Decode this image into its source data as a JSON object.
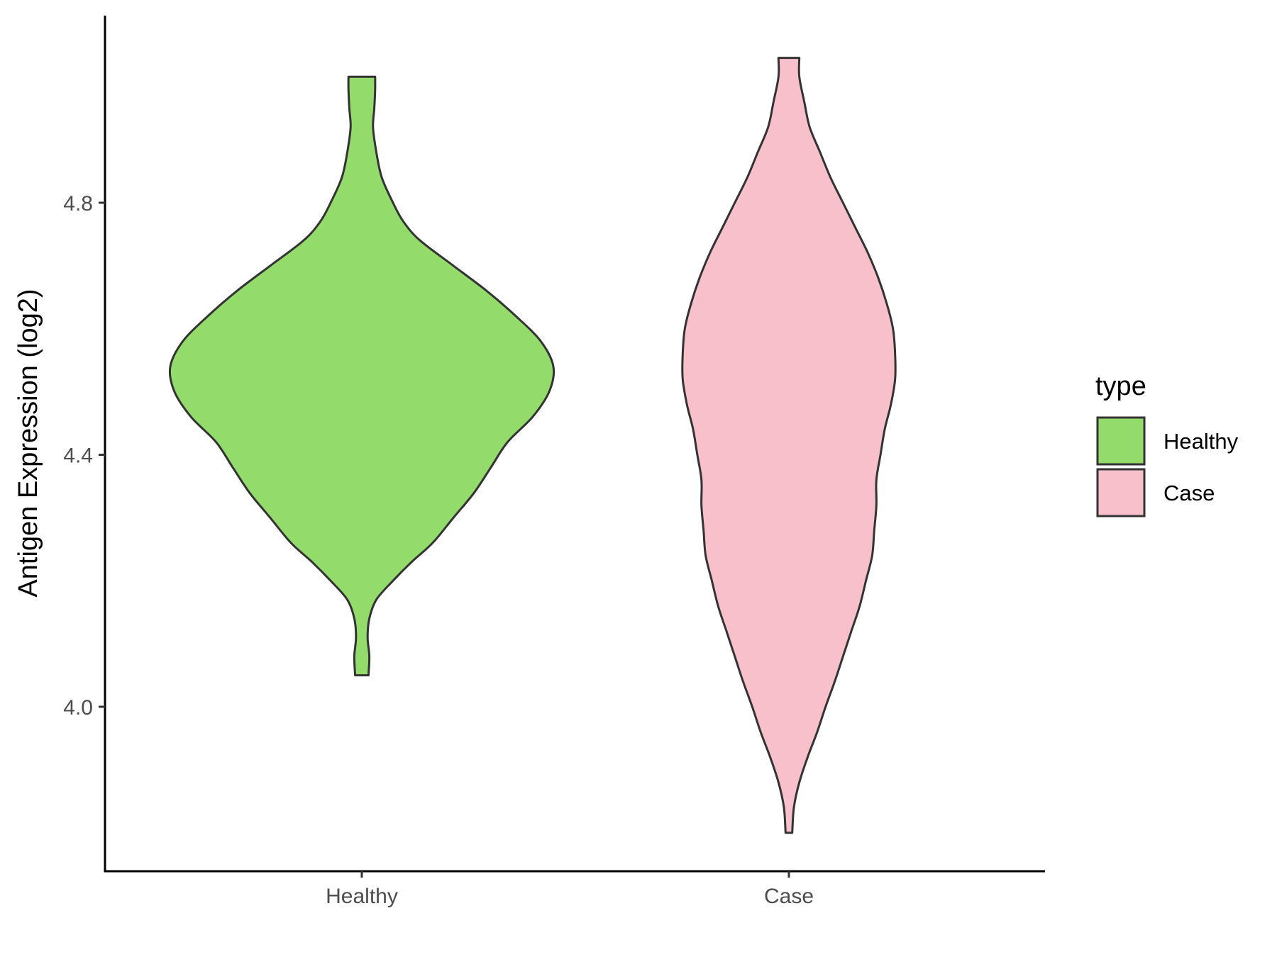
{
  "chart_data": {
    "type": "violin",
    "title": "",
    "xlabel": "",
    "ylabel": "Antigen Expression (log2)",
    "categories": [
      "Healthy",
      "Case"
    ],
    "ylim": [
      3.74,
      5.1
    ],
    "yticks": [
      {
        "value": 4.0,
        "label": "4.0"
      },
      {
        "value": 4.4,
        "label": "4.4"
      },
      {
        "value": 4.8,
        "label": "4.8"
      }
    ],
    "grid": false,
    "legend": {
      "title": "type",
      "placement": "right",
      "items": [
        {
          "label": "Healthy",
          "color": "#93DC6C"
        },
        {
          "label": "Case",
          "color": "#F7C0CB"
        }
      ]
    },
    "series": [
      {
        "name": "Healthy",
        "color": "#93DC6C",
        "min": 4.05,
        "max": 5.0,
        "profile": [
          [
            4.05,
            0.016
          ],
          [
            4.08,
            0.018
          ],
          [
            4.11,
            0.014
          ],
          [
            4.14,
            0.018
          ],
          [
            4.17,
            0.035
          ],
          [
            4.2,
            0.075
          ],
          [
            4.23,
            0.12
          ],
          [
            4.26,
            0.17
          ],
          [
            4.3,
            0.22
          ],
          [
            4.34,
            0.27
          ],
          [
            4.38,
            0.31
          ],
          [
            4.42,
            0.35
          ],
          [
            4.46,
            0.41
          ],
          [
            4.5,
            0.45
          ],
          [
            4.54,
            0.46
          ],
          [
            4.58,
            0.43
          ],
          [
            4.62,
            0.37
          ],
          [
            4.66,
            0.3
          ],
          [
            4.7,
            0.22
          ],
          [
            4.74,
            0.14
          ],
          [
            4.77,
            0.1
          ],
          [
            4.8,
            0.075
          ],
          [
            4.84,
            0.048
          ],
          [
            4.88,
            0.035
          ],
          [
            4.92,
            0.027
          ],
          [
            4.95,
            0.03
          ],
          [
            4.98,
            0.032
          ],
          [
            5.0,
            0.032
          ]
        ]
      },
      {
        "name": "Case",
        "color": "#F7C0CB",
        "min": 3.8,
        "max": 5.03,
        "profile": [
          [
            3.8,
            0.008
          ],
          [
            3.84,
            0.012
          ],
          [
            3.88,
            0.025
          ],
          [
            3.92,
            0.045
          ],
          [
            3.96,
            0.068
          ],
          [
            4.0,
            0.088
          ],
          [
            4.04,
            0.11
          ],
          [
            4.08,
            0.13
          ],
          [
            4.12,
            0.15
          ],
          [
            4.16,
            0.17
          ],
          [
            4.2,
            0.185
          ],
          [
            4.24,
            0.2
          ],
          [
            4.28,
            0.205
          ],
          [
            4.32,
            0.21
          ],
          [
            4.36,
            0.21
          ],
          [
            4.4,
            0.22
          ],
          [
            4.44,
            0.23
          ],
          [
            4.48,
            0.245
          ],
          [
            4.52,
            0.255
          ],
          [
            4.56,
            0.255
          ],
          [
            4.6,
            0.25
          ],
          [
            4.64,
            0.235
          ],
          [
            4.68,
            0.215
          ],
          [
            4.72,
            0.19
          ],
          [
            4.76,
            0.16
          ],
          [
            4.8,
            0.13
          ],
          [
            4.84,
            0.1
          ],
          [
            4.88,
            0.075
          ],
          [
            4.92,
            0.05
          ],
          [
            4.96,
            0.037
          ],
          [
            5.0,
            0.025
          ],
          [
            5.03,
            0.025
          ]
        ]
      }
    ]
  }
}
